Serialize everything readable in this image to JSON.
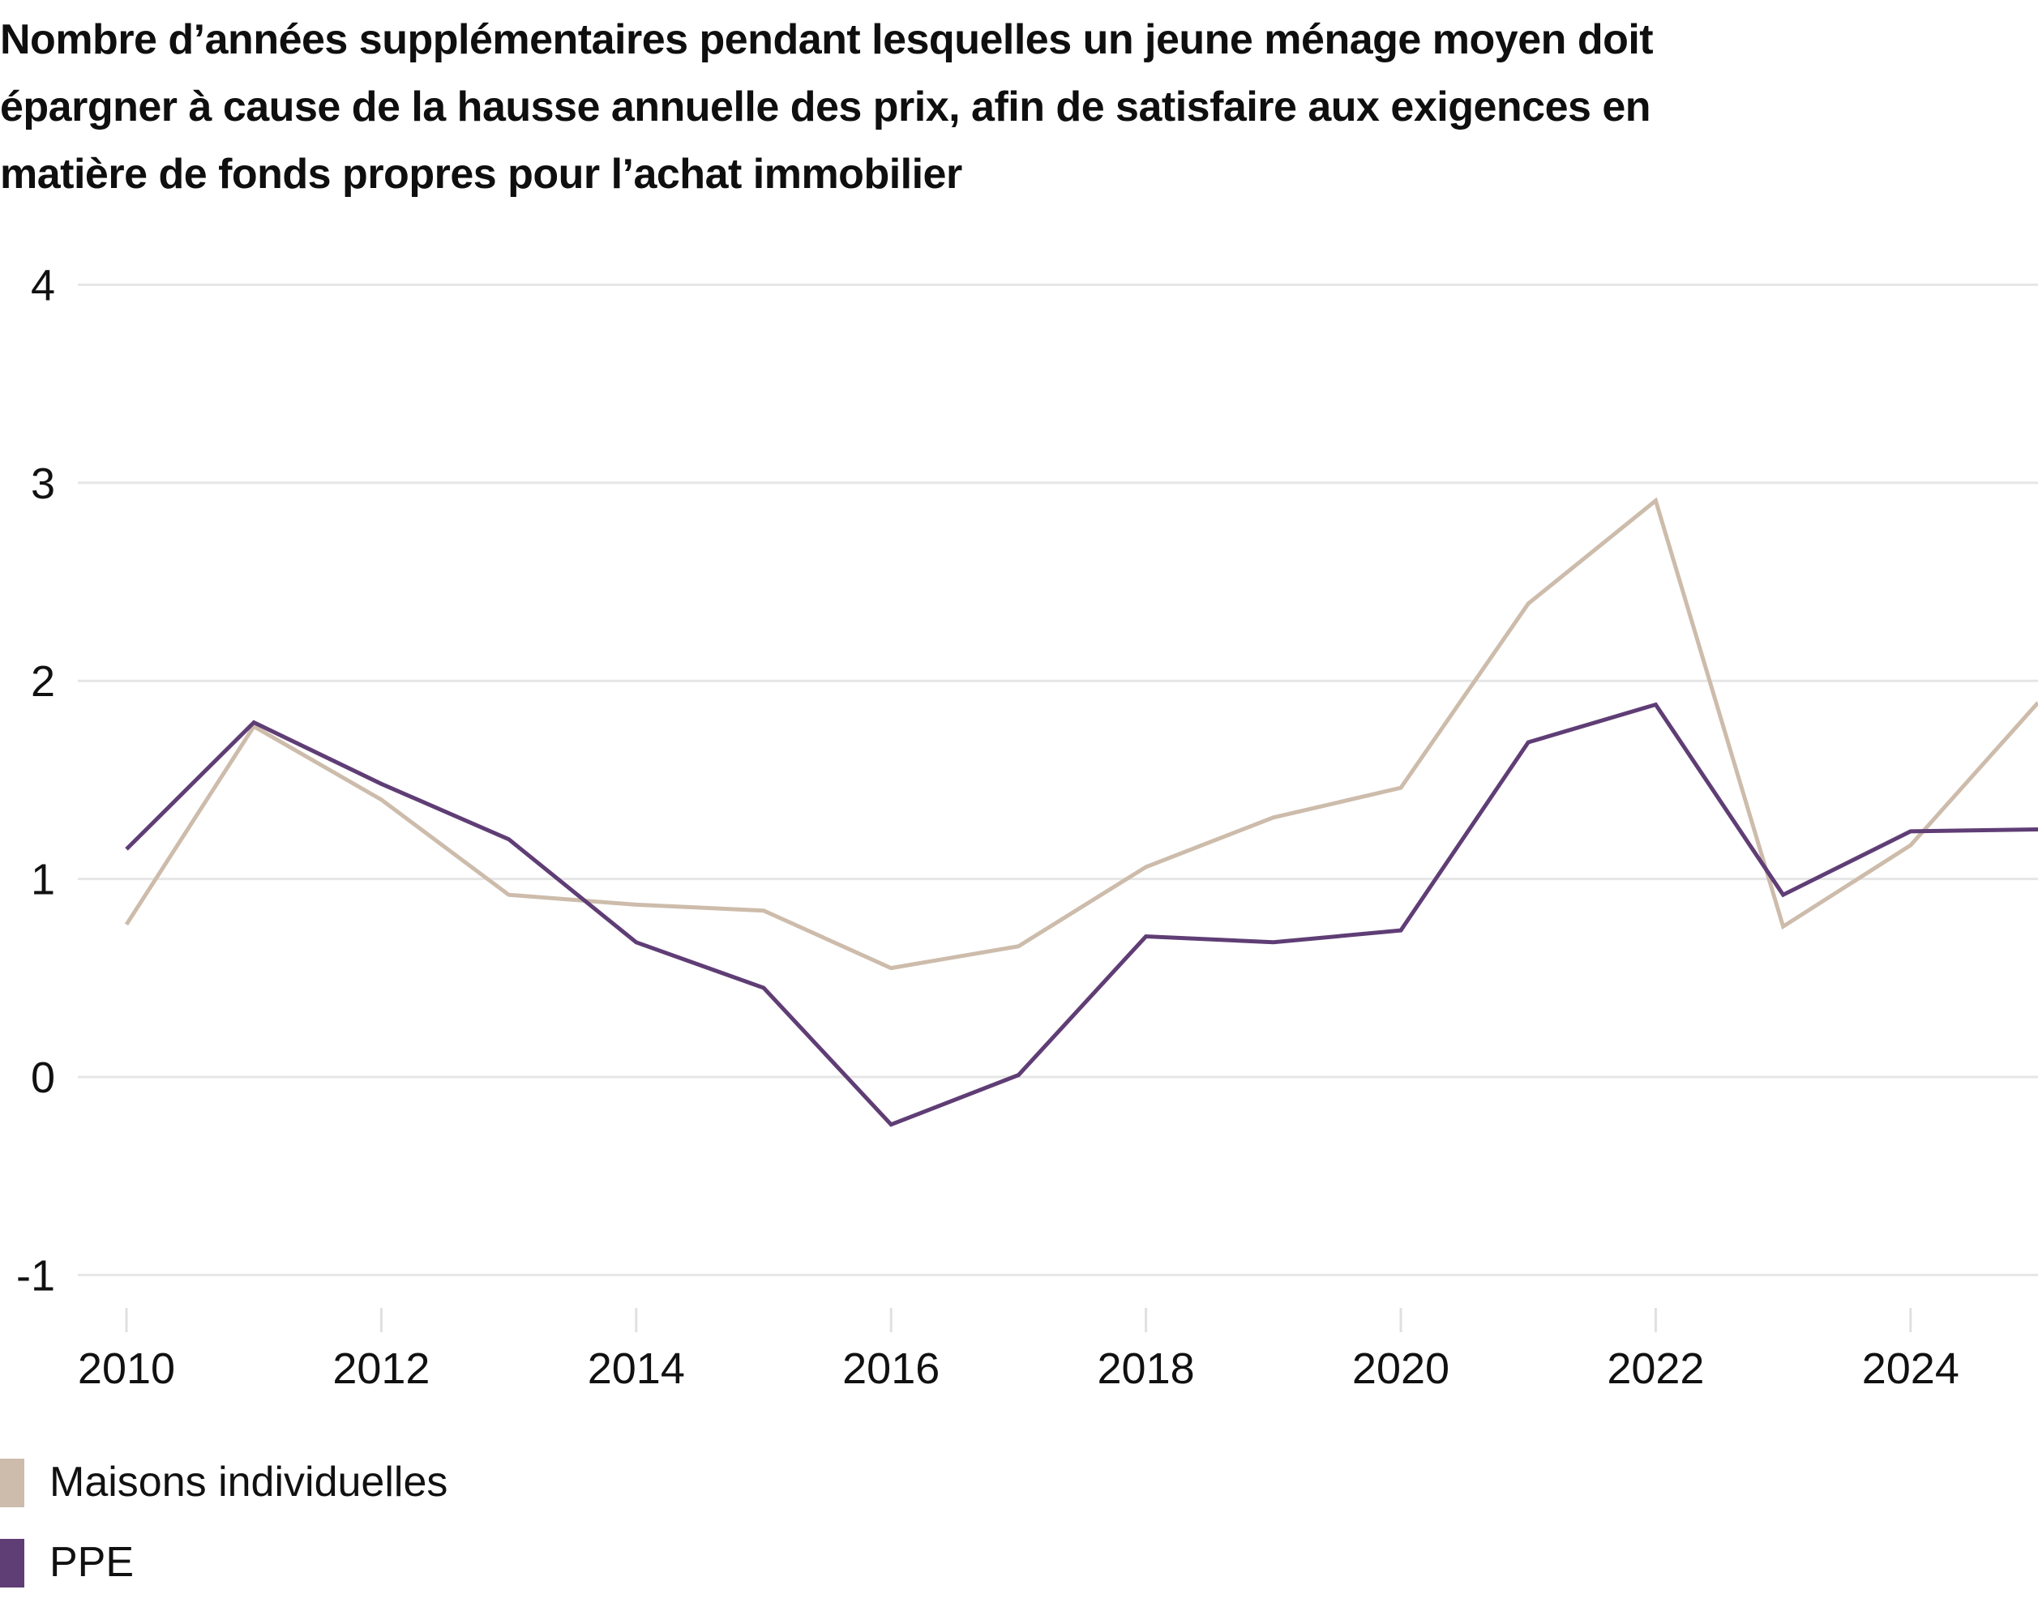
{
  "title_lines": [
    "Nombre d’années supplémentaires pendant lesquelles un jeune ménage moyen doit",
    "épargner à cause de la hausse annuelle des prix, afin de satisfaire aux exigences en",
    "matière de fonds propres pour l’achat immobilier"
  ],
  "legend": [
    {
      "label": "Maisons individuelles",
      "color": "#CDBCAB"
    },
    {
      "label": "PPE",
      "color": "#5F3D75"
    }
  ],
  "chart_data": {
    "type": "line",
    "title": "Nombre d’années supplémentaires pendant lesquelles un jeune ménage moyen doit épargner à cause de la hausse annuelle des prix, afin de satisfaire aux exigences en matière de fonds propres pour l’achat immobilier",
    "xlabel": "",
    "ylabel": "",
    "x": [
      2010,
      2011,
      2012,
      2013,
      2014,
      2015,
      2016,
      2017,
      2018,
      2019,
      2020,
      2021,
      2022,
      2023,
      2024,
      2025
    ],
    "xlim": [
      2010,
      2025
    ],
    "ylim": [
      -1,
      4
    ],
    "yticks": [
      4,
      3,
      2,
      1,
      0,
      -1
    ],
    "ytick_labels": [
      "4",
      "3",
      "2",
      "1",
      "0",
      "-1"
    ],
    "xticks": [
      2010,
      2012,
      2014,
      2016,
      2018,
      2020,
      2022,
      2024
    ],
    "xtick_labels": [
      "2010",
      "2012",
      "2014",
      "2016",
      "2018",
      "2020",
      "2022",
      "2024"
    ],
    "grid": "horizontal",
    "legend_position": "bottom-left",
    "series": [
      {
        "name": "Maisons individuelles",
        "color": "#CDBCAB",
        "values": [
          0.77,
          1.77,
          1.4,
          0.92,
          0.87,
          0.84,
          0.55,
          0.66,
          1.06,
          1.31,
          1.46,
          2.39,
          2.91,
          0.76,
          1.17,
          1.89
        ]
      },
      {
        "name": "PPE",
        "color": "#5F3D75",
        "values": [
          1.15,
          1.79,
          1.48,
          1.2,
          0.68,
          0.45,
          -0.24,
          0.01,
          0.71,
          0.68,
          0.74,
          1.69,
          1.88,
          0.92,
          1.24,
          1.25
        ]
      }
    ]
  }
}
